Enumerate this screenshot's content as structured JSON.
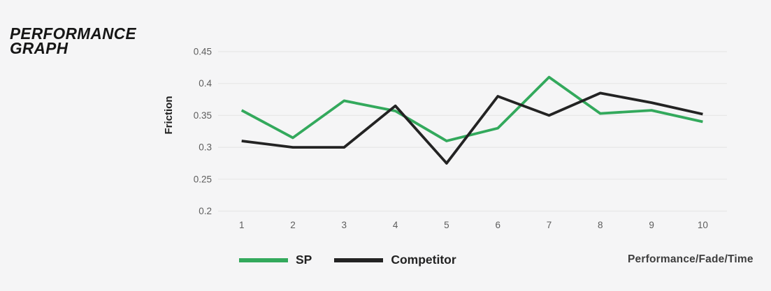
{
  "page": {
    "background_color": "#f5f5f6"
  },
  "title": {
    "line1": "PERFORMANCE",
    "line2": "GRAPH"
  },
  "chart_data": {
    "type": "line",
    "title": "PERFORMANCE GRAPH",
    "ylabel": "Friction",
    "xlabel": "Performance/Fade/Time",
    "x": [
      "1",
      "2",
      "3",
      "4",
      "5",
      "6",
      "7",
      "8",
      "9",
      "10"
    ],
    "series": [
      {
        "name": "SP",
        "color": "#33a95c",
        "values": [
          0.358,
          0.315,
          0.373,
          0.357,
          0.31,
          0.33,
          0.41,
          0.353,
          0.358,
          0.34
        ]
      },
      {
        "name": "Competitor",
        "color": "#232323",
        "values": [
          0.31,
          0.3,
          0.3,
          0.365,
          0.275,
          0.38,
          0.35,
          0.385,
          0.37,
          0.352
        ]
      }
    ],
    "ylim": [
      0.2,
      0.45
    ],
    "yticks": [
      {
        "value": 0.45,
        "label": "0.45"
      },
      {
        "value": 0.4,
        "label": "0.4"
      },
      {
        "value": 0.35,
        "label": "0.35"
      },
      {
        "value": 0.3,
        "label": "0.3"
      },
      {
        "value": 0.25,
        "label": "0.25"
      },
      {
        "value": 0.2,
        "label": "0.2"
      }
    ],
    "grid": true,
    "gridline_color": "#e7e7e7",
    "tick_label_color": "#5d5d5d",
    "legend_position": "bottom"
  },
  "legend": {
    "items": [
      {
        "label": "SP",
        "color": "#33a95c"
      },
      {
        "label": "Competitor",
        "color": "#232323"
      }
    ]
  }
}
